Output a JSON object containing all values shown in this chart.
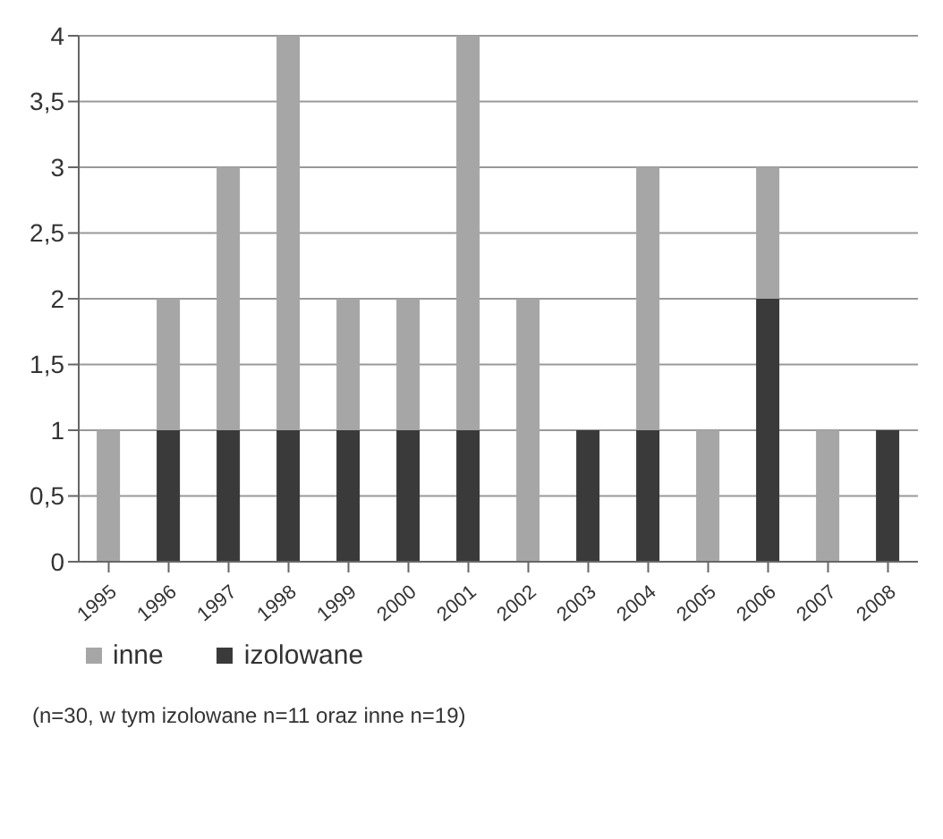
{
  "chart_data": {
    "type": "bar",
    "stacked": true,
    "categories": [
      "1995",
      "1996",
      "1997",
      "1998",
      "1999",
      "2000",
      "2001",
      "2002",
      "2003",
      "2004",
      "2005",
      "2006",
      "2007",
      "2008"
    ],
    "series": [
      {
        "name": "izolowane",
        "color": "#3a3a3a",
        "values": [
          0,
          1,
          1,
          1,
          1,
          1,
          1,
          0,
          1,
          1,
          0,
          2,
          0,
          1
        ]
      },
      {
        "name": "inne",
        "color": "#a6a6a6",
        "values": [
          1,
          1,
          2,
          3,
          1,
          1,
          3,
          2,
          0,
          2,
          1,
          1,
          1,
          0
        ]
      }
    ],
    "ylim": [
      0,
      4
    ],
    "yticks": [
      0,
      {
        "value": 0.5,
        "label": "0,5"
      },
      1,
      {
        "value": 1.5,
        "label": "1,5"
      },
      2,
      {
        "value": 2.5,
        "label": "2,5"
      },
      3,
      {
        "value": 3.5,
        "label": "3,5"
      },
      4
    ],
    "grid": "y",
    "legend": "bottom",
    "annotations": [
      "(n=30, w tym izolowane n=11 oraz inne n=19)"
    ]
  }
}
